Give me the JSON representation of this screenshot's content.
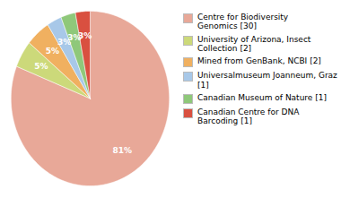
{
  "chart_data": {
    "type": "pie",
    "categories": [
      "Centre for Biodiversity\nGenomics [30]",
      "University of Arizona, Insect\nCollection [2]",
      "Mined from GenBank, NCBI [2]",
      "Universalmuseum Joanneum, Graz [1]",
      "Canadian Museum of Nature [1]",
      "Canadian Centre for DNA\nBarcoding [1]"
    ],
    "values": [
      81,
      5,
      5,
      3,
      3,
      3
    ],
    "value_labels": [
      "81%",
      "5%",
      "5%",
      "3%",
      "3%",
      "3%"
    ],
    "colors": [
      "#e8a898",
      "#ccd97a",
      "#f0b060",
      "#a8c8e8",
      "#8fc87a",
      "#d95040"
    ],
    "data_labels": true,
    "legend": "upper right"
  }
}
